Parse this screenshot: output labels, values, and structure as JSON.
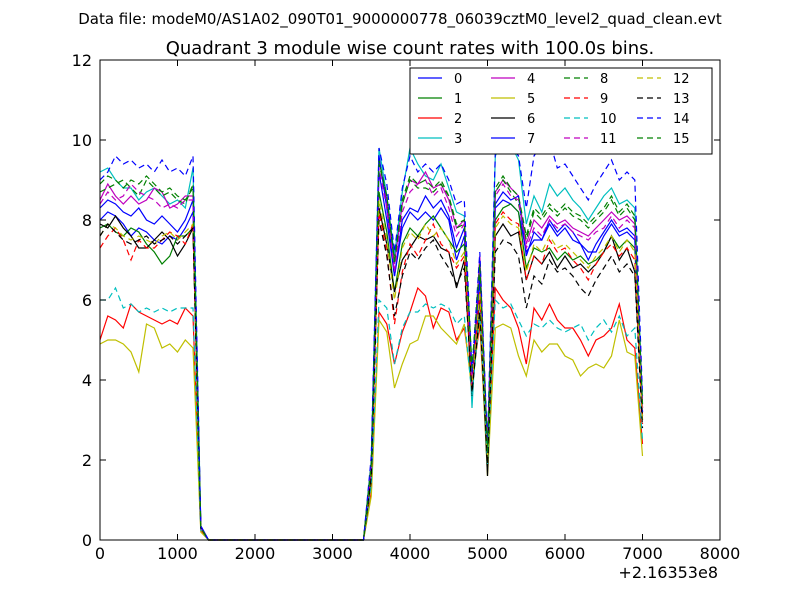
{
  "chart_data": {
    "type": "line",
    "suptitle": "Data file: modeM0/AS1A02_090T01_9000000778_06039cztM0_level2_quad_clean.evt",
    "title": "Quadrant 3 module wise count rates with 100.0s bins.",
    "xlabel": "",
    "ylabel": "",
    "x_offset_label": "+2.16353e8",
    "xlim": [
      0,
      8000
    ],
    "ylim": [
      0,
      12
    ],
    "xticks": [
      "0",
      "1000",
      "2000",
      "3000",
      "4000",
      "5000",
      "6000",
      "7000",
      "8000"
    ],
    "yticks": [
      "0",
      "2",
      "4",
      "6",
      "8",
      "10",
      "12"
    ],
    "grid": false,
    "legend_position": "top-right",
    "x": [
      0,
      100,
      200,
      300,
      400,
      500,
      600,
      700,
      800,
      900,
      1000,
      1100,
      1200,
      1300,
      1400,
      1500,
      1600,
      1700,
      1800,
      1900,
      2000,
      2100,
      2200,
      2300,
      2400,
      2500,
      2600,
      2700,
      2800,
      2900,
      3000,
      3100,
      3200,
      3300,
      3400,
      3500,
      3600,
      3700,
      3800,
      3900,
      4000,
      4100,
      4200,
      4300,
      4400,
      4500,
      4600,
      4700,
      4800,
      4900,
      5000,
      5100,
      5200,
      5300,
      5400,
      5500,
      5600,
      5700,
      5800,
      5900,
      6000,
      6100,
      6200,
      6300,
      6400,
      6500,
      6600,
      6700,
      6800,
      6900,
      7000
    ],
    "series": [
      {
        "name": "0",
        "color": "#0000ff",
        "dash": "solid",
        "values": [
          8.0,
          8.2,
          8.1,
          7.9,
          7.6,
          7.8,
          7.7,
          7.5,
          7.4,
          7.6,
          7.5,
          7.8,
          8.2,
          0.35,
          0,
          0,
          0,
          0,
          0,
          0,
          0,
          0,
          0,
          0,
          0,
          0,
          0,
          0,
          0,
          0,
          0,
          0,
          0,
          0,
          0,
          1.8,
          9.2,
          8.0,
          6.6,
          7.8,
          8.2,
          8.0,
          8.2,
          8.0,
          8.3,
          8.0,
          7.0,
          7.6,
          4.0,
          6.8,
          2.2,
          8.3,
          8.5,
          8.4,
          8.2,
          7.2,
          7.5,
          7.5,
          7.9,
          7.6,
          7.8,
          7.5,
          7.4,
          7.2,
          7.2,
          7.6,
          7.9,
          7.6,
          7.7,
          7.5,
          3.2
        ]
      },
      {
        "name": "1",
        "color": "#008000",
        "dash": "solid",
        "values": [
          7.8,
          7.9,
          7.7,
          7.6,
          7.8,
          7.7,
          7.4,
          7.2,
          6.9,
          7.1,
          7.6,
          7.6,
          7.8,
          0.3,
          0,
          0,
          0,
          0,
          0,
          0,
          0,
          0,
          0,
          0,
          0,
          0,
          0,
          0,
          0,
          0,
          0,
          0,
          0,
          0,
          0,
          1.6,
          8.7,
          7.7,
          6.2,
          7.4,
          7.8,
          7.6,
          7.9,
          8.1,
          7.8,
          7.5,
          7.2,
          7.4,
          3.8,
          6.2,
          2.1,
          8.0,
          8.3,
          8.4,
          8.2,
          6.8,
          7.3,
          7.2,
          7.3,
          7.0,
          7.2,
          7.0,
          7.1,
          6.9,
          7.0,
          7.2,
          7.6,
          7.3,
          7.5,
          7.3,
          3.0
        ]
      },
      {
        "name": "2",
        "color": "#ff0000",
        "dash": "solid",
        "values": [
          5.0,
          5.6,
          5.5,
          5.3,
          5.9,
          5.7,
          5.6,
          5.5,
          5.4,
          5.5,
          5.4,
          5.8,
          5.6,
          0.25,
          0,
          0,
          0,
          0,
          0,
          0,
          0,
          0,
          0,
          0,
          0,
          0,
          0,
          0,
          0,
          0,
          0,
          0,
          0,
          0,
          0,
          1.2,
          5.7,
          5.4,
          4.4,
          5.2,
          5.7,
          6.3,
          6.1,
          5.3,
          5.8,
          5.7,
          5.0,
          5.3,
          3.9,
          5.4,
          1.8,
          6.3,
          6.0,
          5.8,
          5.3,
          4.4,
          5.8,
          5.5,
          5.9,
          5.5,
          5.3,
          5.3,
          5.0,
          4.6,
          5.0,
          5.1,
          5.3,
          5.9,
          5.0,
          4.8,
          2.4
        ]
      },
      {
        "name": "3",
        "color": "#00bfbf",
        "dash": "solid",
        "values": [
          9.2,
          9.3,
          9.0,
          8.8,
          8.8,
          8.5,
          8.7,
          8.8,
          8.6,
          8.4,
          8.5,
          8.3,
          9.3,
          0.35,
          0,
          0,
          0,
          0,
          0,
          0,
          0,
          0,
          0,
          0,
          0,
          0,
          0,
          0,
          0,
          0,
          0,
          0,
          0,
          0,
          0,
          2.0,
          9.8,
          8.6,
          7.1,
          8.7,
          9.8,
          9.4,
          9.1,
          9.0,
          9.4,
          8.8,
          8.2,
          8.1,
          3.3,
          7.0,
          2.3,
          9.6,
          10.0,
          9.9,
          9.5,
          7.9,
          8.6,
          8.2,
          8.9,
          8.6,
          8.8,
          8.5,
          8.3,
          8.0,
          8.3,
          8.6,
          8.8,
          8.4,
          8.5,
          8.3,
          3.4
        ]
      },
      {
        "name": "4",
        "color": "#bf00bf",
        "dash": "solid",
        "values": [
          8.5,
          8.9,
          8.6,
          8.4,
          8.6,
          8.4,
          8.5,
          8.8,
          8.7,
          8.3,
          8.4,
          8.6,
          8.6,
          0.35,
          0,
          0,
          0,
          0,
          0,
          0,
          0,
          0,
          0,
          0,
          0,
          0,
          0,
          0,
          0,
          0,
          0,
          0,
          0,
          0,
          0,
          1.9,
          9.5,
          8.5,
          6.9,
          8.4,
          9.0,
          8.9,
          9.2,
          8.8,
          8.9,
          8.5,
          7.8,
          8.0,
          3.9,
          7.1,
          2.3,
          8.7,
          9.0,
          8.8,
          8.6,
          7.4,
          8.0,
          7.8,
          8.1,
          7.9,
          8.0,
          7.8,
          7.7,
          7.6,
          7.8,
          8.0,
          8.2,
          8.0,
          8.1,
          7.9,
          3.3
        ]
      },
      {
        "name": "5",
        "color": "#bfbf00",
        "dash": "solid",
        "values": [
          4.9,
          5.0,
          5.0,
          4.9,
          4.7,
          4.2,
          5.4,
          5.3,
          4.8,
          4.9,
          4.7,
          5.0,
          4.8,
          0.2,
          0,
          0,
          0,
          0,
          0,
          0,
          0,
          0,
          0,
          0,
          0,
          0,
          0,
          0,
          0,
          0,
          0,
          0,
          0,
          0,
          0,
          1.1,
          5.5,
          5.2,
          3.8,
          4.4,
          4.9,
          5.0,
          5.6,
          5.6,
          5.3,
          5.1,
          4.9,
          5.4,
          3.7,
          5.6,
          1.6,
          5.3,
          5.4,
          5.3,
          4.6,
          4.1,
          5.0,
          4.7,
          4.9,
          4.9,
          4.6,
          4.5,
          4.1,
          4.3,
          4.4,
          4.3,
          4.6,
          5.5,
          4.7,
          4.6,
          2.1
        ]
      },
      {
        "name": "6",
        "color": "#000000",
        "dash": "solid",
        "values": [
          7.9,
          7.8,
          8.1,
          7.8,
          7.6,
          7.3,
          7.3,
          7.5,
          7.7,
          7.5,
          7.1,
          7.4,
          7.8,
          0.3,
          0,
          0,
          0,
          0,
          0,
          0,
          0,
          0,
          0,
          0,
          0,
          0,
          0,
          0,
          0,
          0,
          0,
          0,
          0,
          0,
          0,
          1.5,
          8.3,
          7.4,
          6.2,
          7.0,
          7.3,
          7.6,
          7.5,
          7.6,
          7.3,
          7.2,
          6.3,
          7.0,
          3.6,
          6.1,
          1.6,
          7.6,
          7.9,
          7.6,
          7.7,
          6.5,
          7.1,
          6.9,
          7.2,
          6.8,
          7.1,
          6.8,
          6.9,
          6.7,
          6.9,
          7.2,
          7.6,
          7.0,
          7.3,
          6.7,
          3.1
        ]
      },
      {
        "name": "7",
        "color": "#0000ff",
        "dash": "solid",
        "values": [
          8.3,
          8.5,
          8.4,
          8.2,
          8.1,
          8.3,
          8.0,
          7.9,
          8.1,
          7.9,
          7.7,
          8.0,
          8.5,
          0.35,
          0,
          0,
          0,
          0,
          0,
          0,
          0,
          0,
          0,
          0,
          0,
          0,
          0,
          0,
          0,
          0,
          0,
          0,
          0,
          0,
          0,
          1.9,
          9.6,
          8.3,
          6.6,
          8.0,
          8.3,
          8.2,
          8.6,
          8.3,
          8.5,
          8.1,
          7.3,
          7.8,
          4.1,
          6.5,
          2.1,
          8.4,
          8.7,
          8.5,
          8.6,
          7.1,
          7.7,
          7.5,
          8.0,
          7.7,
          7.9,
          7.7,
          7.4,
          7.0,
          7.4,
          7.7,
          8.0,
          7.7,
          7.8,
          7.6,
          3.2
        ]
      },
      {
        "name": "8",
        "color": "#008000",
        "dash": "dashed",
        "values": [
          8.7,
          8.8,
          8.9,
          9.0,
          8.8,
          8.6,
          9.0,
          8.8,
          8.6,
          8.7,
          8.5,
          8.4,
          8.9,
          0.3,
          0,
          0,
          0,
          0,
          0,
          0,
          0,
          0,
          0,
          0,
          0,
          0,
          0,
          0,
          0,
          0,
          0,
          0,
          0,
          0,
          0,
          1.9,
          9.5,
          8.6,
          6.9,
          8.4,
          9.0,
          8.8,
          8.8,
          8.7,
          8.9,
          8.6,
          7.8,
          7.9,
          4.3,
          6.8,
          2.2,
          8.7,
          9.0,
          8.7,
          8.4,
          7.5,
          8.2,
          8.0,
          8.3,
          8.1,
          8.3,
          8.1,
          8.0,
          7.8,
          8.0,
          8.2,
          8.5,
          8.1,
          8.3,
          8.0,
          3.4
        ]
      },
      {
        "name": "9",
        "color": "#ff0000",
        "dash": "dashed",
        "values": [
          7.3,
          7.6,
          7.8,
          7.5,
          7.0,
          7.5,
          7.3,
          7.3,
          7.5,
          7.7,
          7.6,
          7.4,
          7.9,
          0.3,
          0,
          0,
          0,
          0,
          0,
          0,
          0,
          0,
          0,
          0,
          0,
          0,
          0,
          0,
          0,
          0,
          0,
          0,
          0,
          0,
          0,
          1.7,
          8.2,
          7.2,
          5.4,
          6.7,
          7.4,
          7.1,
          7.5,
          7.9,
          7.4,
          7.2,
          6.8,
          7.1,
          3.8,
          6.2,
          2.0,
          7.9,
          8.2,
          8.0,
          7.9,
          6.5,
          7.1,
          6.9,
          7.5,
          7.2,
          7.3,
          7.0,
          6.8,
          6.5,
          6.9,
          7.2,
          7.4,
          7.1,
          7.3,
          7.0,
          2.9
        ]
      },
      {
        "name": "10",
        "color": "#00bfbf",
        "dash": "dashed",
        "values": [
          6.0,
          6.0,
          6.3,
          5.8,
          5.9,
          5.7,
          5.8,
          5.7,
          5.8,
          5.7,
          5.8,
          5.8,
          5.8,
          0.25,
          0,
          0,
          0,
          0,
          0,
          0,
          0,
          0,
          0,
          0,
          0,
          0,
          0,
          0,
          0,
          0,
          0,
          0,
          0,
          0,
          0,
          1.4,
          6.0,
          5.8,
          4.4,
          5.3,
          5.7,
          5.7,
          5.9,
          5.8,
          5.9,
          5.8,
          5.4,
          5.6,
          3.6,
          5.7,
          1.9,
          6.0,
          5.8,
          5.9,
          5.5,
          5.1,
          5.4,
          5.3,
          5.5,
          5.3,
          5.2,
          5.3,
          5.4,
          5.0,
          5.3,
          5.5,
          5.2,
          5.6,
          5.1,
          5.3,
          2.5
        ]
      },
      {
        "name": "11",
        "color": "#bf00bf",
        "dash": "dashed",
        "values": [
          8.4,
          8.7,
          8.5,
          8.6,
          8.9,
          8.7,
          8.6,
          8.5,
          8.3,
          8.4,
          8.3,
          8.5,
          8.5,
          0.3,
          0,
          0,
          0,
          0,
          0,
          0,
          0,
          0,
          0,
          0,
          0,
          0,
          0,
          0,
          0,
          0,
          0,
          0,
          0,
          0,
          0,
          1.8,
          9.3,
          8.3,
          6.7,
          8.2,
          8.7,
          8.9,
          9.0,
          8.6,
          8.8,
          8.3,
          7.6,
          7.9,
          3.9,
          7.0,
          2.2,
          8.6,
          8.9,
          8.6,
          8.5,
          7.3,
          7.8,
          7.6,
          8.0,
          7.8,
          7.9,
          7.7,
          7.6,
          7.5,
          7.7,
          7.8,
          8.1,
          7.8,
          8.0,
          7.8,
          3.3
        ]
      },
      {
        "name": "12",
        "color": "#bfbf00",
        "dash": "dashed",
        "values": [
          7.6,
          7.9,
          7.8,
          7.6,
          7.5,
          7.6,
          7.5,
          7.4,
          7.6,
          7.7,
          7.5,
          7.7,
          7.9,
          0.3,
          0,
          0,
          0,
          0,
          0,
          0,
          0,
          0,
          0,
          0,
          0,
          0,
          0,
          0,
          0,
          0,
          0,
          0,
          0,
          0,
          0,
          1.7,
          8.5,
          7.5,
          6.0,
          7.3,
          7.7,
          7.5,
          7.9,
          7.6,
          7.8,
          7.5,
          6.9,
          7.2,
          3.8,
          6.2,
          2.0,
          7.8,
          8.1,
          7.9,
          7.8,
          6.7,
          7.4,
          7.2,
          7.6,
          7.3,
          7.4,
          7.2,
          7.0,
          6.8,
          7.1,
          7.3,
          7.6,
          7.2,
          7.5,
          7.2,
          3.0
        ]
      },
      {
        "name": "13",
        "color": "#000000",
        "dash": "dashed",
        "values": [
          7.6,
          7.9,
          7.7,
          7.5,
          7.4,
          7.5,
          7.6,
          7.4,
          7.5,
          7.6,
          7.4,
          7.6,
          7.8,
          0.3,
          0,
          0,
          0,
          0,
          0,
          0,
          0,
          0,
          0,
          0,
          0,
          0,
          0,
          0,
          0,
          0,
          0,
          0,
          0,
          0,
          0,
          1.6,
          8.0,
          7.1,
          5.6,
          6.6,
          7.2,
          7.0,
          7.3,
          7.5,
          7.1,
          6.8,
          6.4,
          6.8,
          3.7,
          5.7,
          1.9,
          7.2,
          7.5,
          7.4,
          7.1,
          5.8,
          6.6,
          6.4,
          7.0,
          6.7,
          6.8,
          6.6,
          6.3,
          6.1,
          6.5,
          6.8,
          7.1,
          6.7,
          6.9,
          6.6,
          2.8
        ]
      },
      {
        "name": "14",
        "color": "#0000ff",
        "dash": "dashed",
        "values": [
          9.0,
          9.2,
          9.6,
          9.4,
          9.5,
          9.3,
          9.4,
          9.2,
          9.5,
          9.2,
          9.3,
          9.1,
          9.6,
          0.35,
          0,
          0,
          0,
          0,
          0,
          0,
          0,
          0,
          0,
          0,
          0,
          0,
          0,
          0,
          0,
          0,
          0,
          0,
          0,
          0,
          0,
          2.1,
          9.8,
          8.9,
          7.2,
          8.8,
          9.6,
          9.2,
          9.4,
          9.2,
          9.4,
          9.0,
          8.4,
          8.5,
          4.2,
          7.2,
          2.4,
          9.7,
          10.2,
          9.9,
          9.6,
          8.3,
          9.6,
          9.9,
          10.0,
          9.3,
          9.4,
          9.1,
          8.8,
          8.5,
          8.9,
          9.2,
          9.5,
          9.0,
          9.2,
          9.0,
          3.6
        ]
      },
      {
        "name": "15",
        "color": "#008000",
        "dash": "dashed",
        "values": [
          8.9,
          9.1,
          9.0,
          8.8,
          9.0,
          8.9,
          9.1,
          8.9,
          8.7,
          8.8,
          8.6,
          8.5,
          8.8,
          0.3,
          0,
          0,
          0,
          0,
          0,
          0,
          0,
          0,
          0,
          0,
          0,
          0,
          0,
          0,
          0,
          0,
          0,
          0,
          0,
          0,
          0,
          1.9,
          9.4,
          8.6,
          7.0,
          8.5,
          9.1,
          8.9,
          9.0,
          8.8,
          9.0,
          8.6,
          7.9,
          8.0,
          4.3,
          6.9,
          2.2,
          8.8,
          9.1,
          8.8,
          8.6,
          7.6,
          8.3,
          8.1,
          8.4,
          8.2,
          8.4,
          8.2,
          8.1,
          7.9,
          8.1,
          8.3,
          8.6,
          8.2,
          8.4,
          8.1,
          3.4
        ]
      }
    ]
  }
}
